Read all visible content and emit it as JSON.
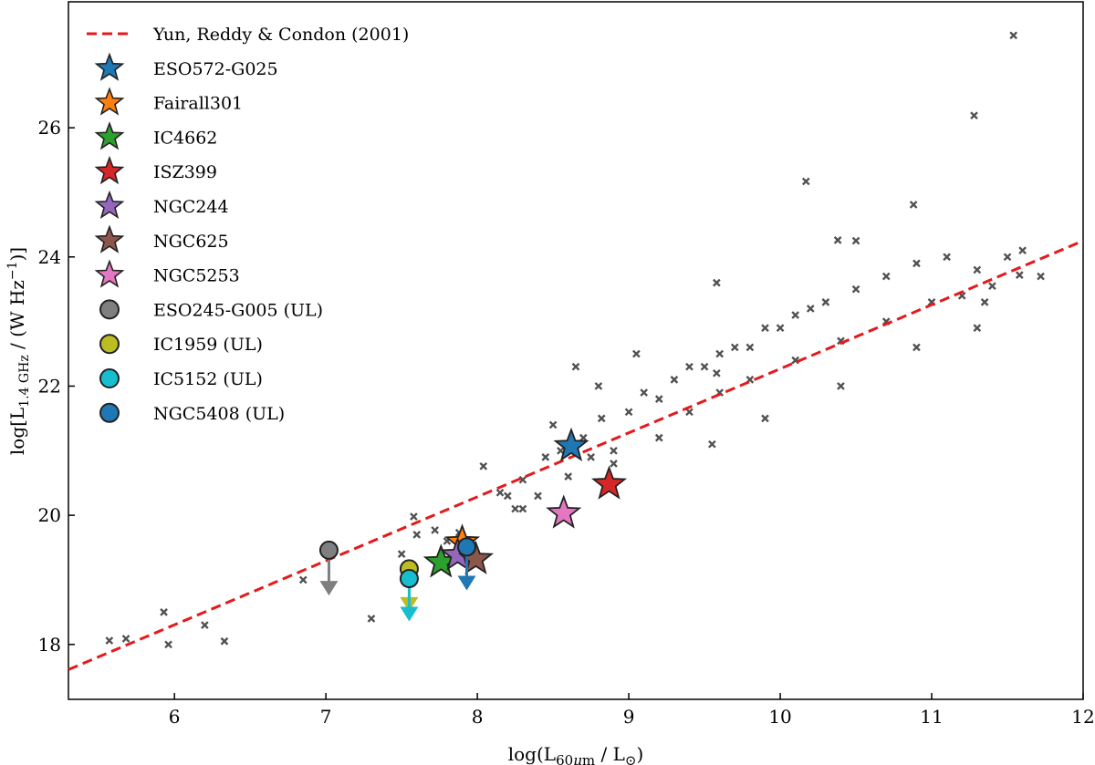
{
  "chart_data": {
    "type": "scatter",
    "xlabel": "log(L60μm / L⊙)",
    "ylabel": "log[L1.4GHz / (W Hz−1)]",
    "xlabel_parts": {
      "main": "log(L",
      "sub": "60",
      "mu": "μ",
      "m": "m",
      "tail": " / L",
      "sun": "⊙",
      "close": ")"
    },
    "ylabel_parts": {
      "main": "log[L",
      "sub": "1.4 GHz",
      "tail": " / (W Hz",
      "sup": "−1",
      "close": ")]"
    },
    "xlim": [
      5.3,
      12.0
    ],
    "ylim": [
      17.15,
      27.95
    ],
    "xticks": [
      "6",
      "7",
      "8",
      "9",
      "10",
      "11",
      "12"
    ],
    "yticks": [
      "18",
      "20",
      "22",
      "24",
      "26"
    ],
    "legend_position": "upper-left",
    "relation": {
      "name": "Yun, Reddy & Condon (2001)",
      "color": "#e41a1c",
      "x": [
        5.3,
        12.0
      ],
      "y": [
        17.61,
        24.25
      ]
    },
    "background_sample": {
      "color": "#333333",
      "points": [
        [
          5.57,
          18.06
        ],
        [
          5.68,
          18.09
        ],
        [
          5.93,
          18.5
        ],
        [
          5.96,
          18.0
        ],
        [
          6.2,
          18.3
        ],
        [
          6.33,
          18.05
        ],
        [
          6.85,
          19.0
        ],
        [
          7.3,
          18.4
        ],
        [
          7.5,
          19.4
        ],
        [
          7.6,
          19.7
        ],
        [
          7.58,
          19.98
        ],
        [
          7.72,
          19.77
        ],
        [
          7.8,
          19.6
        ],
        [
          7.88,
          19.73
        ],
        [
          8.04,
          20.76
        ],
        [
          8.15,
          20.35
        ],
        [
          8.25,
          20.1
        ],
        [
          8.3,
          20.55
        ],
        [
          8.45,
          20.9
        ],
        [
          8.55,
          21.0
        ],
        [
          8.4,
          20.3
        ],
        [
          8.6,
          20.6
        ],
        [
          8.7,
          21.2
        ],
        [
          8.75,
          20.9
        ],
        [
          8.82,
          21.5
        ],
        [
          9.0,
          21.6
        ],
        [
          9.1,
          21.9
        ],
        [
          9.2,
          21.8
        ],
        [
          9.3,
          22.1
        ],
        [
          9.4,
          22.3
        ],
        [
          9.5,
          22.3
        ],
        [
          9.6,
          22.5
        ],
        [
          9.58,
          22.2
        ],
        [
          9.7,
          22.6
        ],
        [
          9.8,
          22.6
        ],
        [
          9.9,
          22.9
        ],
        [
          10.0,
          22.9
        ],
        [
          10.1,
          23.1
        ],
        [
          10.2,
          23.2
        ],
        [
          10.3,
          23.3
        ],
        [
          10.5,
          23.5
        ],
        [
          10.7,
          23.7
        ],
        [
          10.9,
          23.9
        ],
        [
          11.1,
          24.0
        ],
        [
          11.3,
          23.8
        ],
        [
          11.5,
          24.0
        ],
        [
          11.6,
          24.1
        ],
        [
          11.54,
          27.43
        ],
        [
          11.28,
          26.19
        ],
        [
          10.17,
          25.17
        ],
        [
          10.88,
          24.81
        ],
        [
          10.38,
          24.26
        ],
        [
          10.5,
          24.25
        ],
        [
          9.58,
          23.6
        ],
        [
          8.65,
          22.3
        ],
        [
          8.5,
          21.4
        ],
        [
          8.8,
          22.0
        ],
        [
          9.05,
          22.5
        ],
        [
          9.2,
          21.2
        ],
        [
          9.4,
          21.6
        ],
        [
          9.6,
          21.9
        ],
        [
          9.8,
          22.1
        ],
        [
          10.1,
          22.4
        ],
        [
          10.4,
          22.7
        ],
        [
          10.7,
          23.0
        ],
        [
          11.0,
          23.3
        ],
        [
          11.2,
          23.4
        ],
        [
          11.35,
          23.3
        ],
        [
          11.4,
          23.55
        ],
        [
          11.58,
          23.72
        ],
        [
          11.72,
          23.7
        ],
        [
          11.3,
          22.9
        ],
        [
          10.9,
          22.6
        ],
        [
          10.4,
          22.0
        ],
        [
          9.9,
          21.5
        ],
        [
          9.55,
          21.1
        ],
        [
          8.9,
          21.0
        ],
        [
          8.9,
          20.8
        ],
        [
          8.3,
          20.1
        ],
        [
          8.2,
          20.3
        ]
      ]
    },
    "galaxies": [
      {
        "name": "ESO572-G025",
        "x": 8.62,
        "y": 21.07,
        "color": "#1f77b4",
        "marker": "star"
      },
      {
        "name": "Fairall301",
        "x": 7.9,
        "y": 19.58,
        "color": "#ff7f0e",
        "marker": "star"
      },
      {
        "name": "IC4662",
        "x": 7.76,
        "y": 19.27,
        "color": "#2ca02c",
        "marker": "star"
      },
      {
        "name": "ISZ399",
        "x": 8.87,
        "y": 20.48,
        "color": "#d62728",
        "marker": "star"
      },
      {
        "name": "NGC244",
        "x": 7.87,
        "y": 19.38,
        "color": "#9467bd",
        "marker": "star"
      },
      {
        "name": "NGC625",
        "x": 7.99,
        "y": 19.32,
        "color": "#8c564b",
        "marker": "star"
      },
      {
        "name": "NGC5253",
        "x": 8.57,
        "y": 20.03,
        "color": "#e377c2",
        "marker": "star"
      },
      {
        "name": "ESO245-G005 (UL)",
        "x": 7.02,
        "y": 19.46,
        "color": "#7f7f7f",
        "marker": "circle",
        "arrow_to": 18.8
      },
      {
        "name": "IC1959 (UL)",
        "x": 7.55,
        "y": 19.17,
        "color": "#bcbd22",
        "marker": "circle",
        "arrow_to": 18.55
      },
      {
        "name": "IC5152 (UL)",
        "x": 7.55,
        "y": 19.02,
        "color": "#17becf",
        "marker": "circle",
        "arrow_to": 18.4
      },
      {
        "name": "NGC5408 (UL)",
        "x": 7.93,
        "y": 19.51,
        "color": "#1f77b4",
        "marker": "circle",
        "arrow_to": 18.88
      }
    ]
  }
}
